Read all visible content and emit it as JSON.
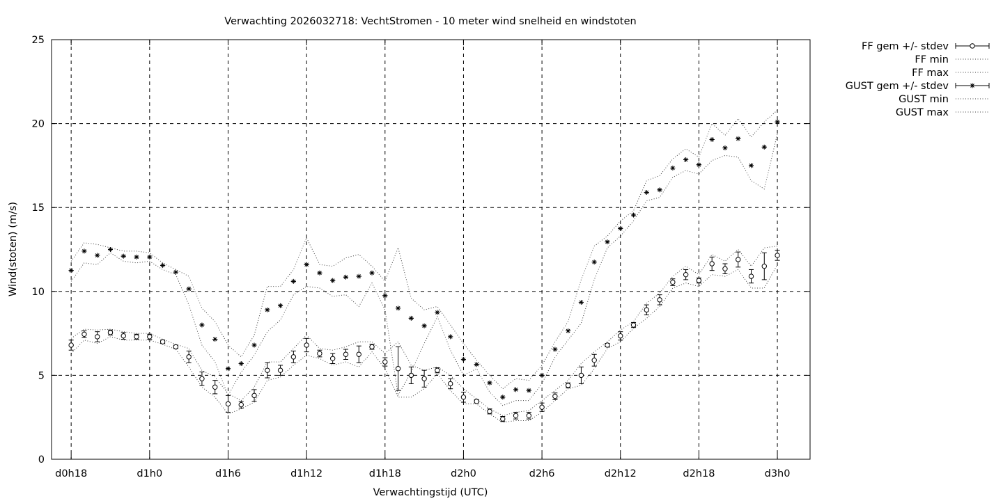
{
  "chart_data": {
    "type": "line",
    "title": "Verwachting 2026032718: VechtStromen - 10 meter wind snelheid en windstoten",
    "xlabel": "Verwachtingstijd (UTC)",
    "ylabel": "Wind(stoten) (m/s)",
    "ylim": [
      0,
      25
    ],
    "yticks": [
      0,
      5,
      10,
      15,
      20,
      25
    ],
    "xlim": [
      -1.5,
      56.5
    ],
    "xticks": [
      {
        "pos": 0,
        "label": "d0h18"
      },
      {
        "pos": 6,
        "label": "d1h0"
      },
      {
        "pos": 12,
        "label": "d1h6"
      },
      {
        "pos": 18,
        "label": "d1h12"
      },
      {
        "pos": 24,
        "label": "d1h18"
      },
      {
        "pos": 30,
        "label": "d2h0"
      },
      {
        "pos": 36,
        "label": "d2h6"
      },
      {
        "pos": 42,
        "label": "d2h12"
      },
      {
        "pos": 48,
        "label": "d2h18"
      },
      {
        "pos": 54,
        "label": "d3h0"
      }
    ],
    "grid": true,
    "legend_position": "outside-right",
    "x": [
      0,
      1,
      2,
      3,
      4,
      5,
      6,
      7,
      8,
      9,
      10,
      11,
      12,
      13,
      14,
      15,
      16,
      17,
      18,
      19,
      20,
      21,
      22,
      23,
      24,
      25,
      26,
      27,
      28,
      29,
      30,
      31,
      32,
      33,
      34,
      35,
      36,
      37,
      38,
      39,
      40,
      41,
      42,
      43,
      44,
      45,
      46,
      47,
      48,
      49,
      50,
      51,
      52,
      53,
      54
    ],
    "series": [
      {
        "name": "FF gem +/- stdev",
        "style": "errorbar-circle",
        "mean": [
          6.8,
          7.45,
          7.3,
          7.55,
          7.35,
          7.3,
          7.3,
          7.0,
          6.7,
          6.1,
          4.8,
          4.3,
          3.3,
          3.25,
          3.8,
          5.3,
          5.3,
          6.1,
          6.8,
          6.3,
          6.0,
          6.25,
          6.25,
          6.7,
          5.8,
          5.4,
          5.0,
          4.8,
          5.3,
          4.5,
          3.7,
          3.45,
          2.85,
          2.4,
          2.6,
          2.6,
          3.1,
          3.75,
          4.4,
          5.0,
          5.9,
          6.8,
          7.35,
          8.0,
          8.9,
          9.5,
          10.55,
          11.0,
          10.65,
          11.65,
          11.35,
          11.9,
          10.9,
          11.5,
          12.15
        ],
        "stdev": [
          0.3,
          0.2,
          0.3,
          0.15,
          0.2,
          0.15,
          0.15,
          0.1,
          0.1,
          0.35,
          0.4,
          0.4,
          0.5,
          0.2,
          0.35,
          0.45,
          0.3,
          0.35,
          0.4,
          0.2,
          0.3,
          0.3,
          0.5,
          0.15,
          0.25,
          1.3,
          0.5,
          0.5,
          0.15,
          0.3,
          0.3,
          0.1,
          0.15,
          0.15,
          0.2,
          0.2,
          0.25,
          0.2,
          0.15,
          0.5,
          0.35,
          0.1,
          0.25,
          0.15,
          0.3,
          0.3,
          0.2,
          0.3,
          0.15,
          0.4,
          0.3,
          0.45,
          0.4,
          0.8,
          0.3
        ]
      },
      {
        "name": "FF min",
        "style": "dotted",
        "values": [
          6.3,
          7.1,
          6.9,
          7.3,
          7.1,
          7.1,
          7.1,
          6.85,
          6.55,
          5.5,
          4.3,
          3.7,
          2.7,
          3.0,
          3.4,
          4.7,
          4.9,
          5.6,
          6.2,
          6.0,
          5.6,
          5.8,
          5.5,
          6.4,
          5.4,
          3.7,
          3.7,
          4.2,
          5.1,
          4.1,
          3.3,
          3.3,
          2.7,
          2.2,
          2.3,
          2.3,
          2.8,
          3.5,
          4.2,
          4.4,
          5.4,
          6.6,
          7.0,
          7.8,
          8.4,
          9.1,
          10.2,
          10.5,
          10.3,
          11.0,
          10.9,
          11.3,
          10.2,
          10.2,
          11.6
        ]
      },
      {
        "name": "FF max",
        "style": "dotted",
        "values": [
          7.2,
          7.75,
          7.7,
          7.75,
          7.6,
          7.5,
          7.5,
          7.15,
          6.85,
          6.6,
          5.3,
          4.9,
          3.9,
          3.5,
          4.3,
          5.8,
          5.8,
          6.6,
          7.4,
          6.6,
          6.5,
          6.7,
          7.0,
          7.0,
          6.3,
          7.0,
          5.6,
          5.3,
          5.5,
          5.0,
          4.2,
          3.6,
          3.0,
          2.6,
          2.8,
          2.9,
          3.5,
          4.1,
          4.7,
          5.7,
          6.4,
          7.0,
          7.7,
          8.2,
          9.3,
          9.9,
          10.9,
          11.5,
          11.0,
          12.2,
          11.8,
          12.5,
          11.5,
          12.6,
          12.7
        ]
      },
      {
        "name": "GUST gem +/- stdev",
        "style": "errorbar-star",
        "mean": [
          11.25,
          12.4,
          12.15,
          12.5,
          12.1,
          12.05,
          12.05,
          11.55,
          11.15,
          10.15,
          8.0,
          7.15,
          5.4,
          5.7,
          6.8,
          8.9,
          9.15,
          10.6,
          11.6,
          11.1,
          10.65,
          10.85,
          10.9,
          11.1,
          9.75,
          9.0,
          8.4,
          7.95,
          8.75,
          7.3,
          5.95,
          5.65,
          4.55,
          3.7,
          4.15,
          4.1,
          5.0,
          6.55,
          7.65,
          9.35,
          11.75,
          12.95,
          13.75,
          14.55,
          15.9,
          16.05,
          17.35,
          17.85,
          17.55,
          19.05,
          18.55,
          19.1,
          17.5,
          18.6,
          20.1
        ]
      },
      {
        "name": "GUST min",
        "style": "dotted",
        "values": [
          10.6,
          11.7,
          11.6,
          12.3,
          11.8,
          11.7,
          11.8,
          11.3,
          11.0,
          9.2,
          6.8,
          5.8,
          3.8,
          5.2,
          6.2,
          7.6,
          8.3,
          9.8,
          10.3,
          10.2,
          9.7,
          9.8,
          9.1,
          10.5,
          8.9,
          3.8,
          5.2,
          6.9,
          8.5,
          6.5,
          5.0,
          5.4,
          4.0,
          3.2,
          3.5,
          3.5,
          4.5,
          6.1,
          7.1,
          8.1,
          10.7,
          12.6,
          13.3,
          14.2,
          15.4,
          15.6,
          16.8,
          17.2,
          17.0,
          17.8,
          18.1,
          18.0,
          16.6,
          16.1,
          19.4
        ]
      },
      {
        "name": "GUST max",
        "style": "dotted",
        "values": [
          11.8,
          12.9,
          12.8,
          12.6,
          12.4,
          12.4,
          12.3,
          11.7,
          11.3,
          10.9,
          9.0,
          8.2,
          6.8,
          6.1,
          7.4,
          10.3,
          10.3,
          11.3,
          13.2,
          11.6,
          11.5,
          12.0,
          12.2,
          11.5,
          10.6,
          12.6,
          9.6,
          8.9,
          9.1,
          8.0,
          6.9,
          5.9,
          5.0,
          4.2,
          4.8,
          4.7,
          5.6,
          7.0,
          8.2,
          10.7,
          12.7,
          13.3,
          14.2,
          14.8,
          16.6,
          16.9,
          17.9,
          18.5,
          18.0,
          20.0,
          19.3,
          20.3,
          19.2,
          20.1,
          20.8
        ]
      }
    ]
  }
}
